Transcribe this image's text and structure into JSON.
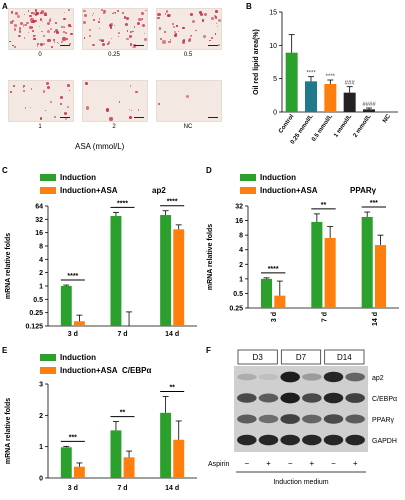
{
  "panel_labels": {
    "a": "A",
    "b": "B",
    "c": "C",
    "d": "D",
    "e": "E",
    "f": "F"
  },
  "panel_a": {
    "labels": [
      "0",
      "0.25",
      "0.5",
      "1",
      "2",
      "NC"
    ],
    "densities": [
      1.0,
      0.6,
      0.5,
      0.25,
      0.12,
      0.02
    ],
    "xlabel": "ASA (mmol/L)",
    "stain_color": "#c8324a",
    "background_color": "#f3e8e2"
  },
  "chart_data": [
    {
      "type": "bar",
      "panel": "B",
      "ylabel": "Oil red lipid area(%)",
      "categories": [
        "Control",
        "0.25 mmol/L",
        "0.5 mmol/L",
        "1 mmol/L",
        "2 mmol/L",
        "NC"
      ],
      "values": [
        8.9,
        4.6,
        4.2,
        2.9,
        0.4,
        0.0
      ],
      "errors": [
        2.7,
        0.7,
        0.6,
        0.9,
        0.2,
        0.0
      ],
      "significance": [
        "",
        "****",
        "****",
        "###",
        "####",
        ""
      ],
      "colors": [
        "#2ca02c",
        "#1f7a8c",
        "#ff7f0e",
        "#222222",
        "#222222",
        "#222222"
      ],
      "ylim": [
        0,
        15
      ],
      "yticks": [
        "0",
        "5",
        "10",
        "15"
      ]
    },
    {
      "type": "bar",
      "panel": "C",
      "title": "ap2",
      "ylabel": "mRNA relative folds",
      "scale": "log2",
      "categories": [
        "3 d",
        "7 d",
        "14 d"
      ],
      "series": [
        {
          "name": "Induction",
          "values": [
            1.0,
            38,
            40
          ],
          "errors": [
            0.05,
            8,
            10
          ]
        },
        {
          "name": "Induction+ASA",
          "values": [
            0.16,
            0.11,
            19
          ],
          "errors": [
            0.06,
            0.15,
            5
          ]
        }
      ],
      "significance": [
        "****",
        "****",
        "****"
      ],
      "ylim": [
        0.125,
        64
      ],
      "yticks": [
        "0.125",
        "0.25",
        "0.5",
        "1",
        "2",
        "4",
        "8",
        "16",
        "32",
        "64"
      ],
      "colors": [
        "#2ca02c",
        "#ff7f0e"
      ]
    },
    {
      "type": "bar",
      "panel": "D",
      "title": "PPARγ",
      "ylabel": "mRNA relative folds",
      "scale": "log2",
      "categories": [
        "3 d",
        "7 d",
        "14 d"
      ],
      "series": [
        {
          "name": "Induction",
          "values": [
            1.0,
            15,
            19
          ],
          "errors": [
            0.05,
            7,
            5
          ]
        },
        {
          "name": "Induction+ASA",
          "values": [
            0.45,
            7,
            5
          ],
          "errors": [
            0.45,
            5,
            3
          ]
        }
      ],
      "significance": [
        "****",
        "**",
        "***"
      ],
      "ylim": [
        0.25,
        32
      ],
      "yticks": [
        "0.25",
        "0.5",
        "1",
        "2",
        "4",
        "8",
        "16",
        "32"
      ],
      "colors": [
        "#2ca02c",
        "#ff7f0e"
      ]
    },
    {
      "type": "bar",
      "panel": "E",
      "title": "C/EBPα",
      "ylabel": "mRNA relative folds",
      "categories": [
        "3 d",
        "7 d",
        "14 d"
      ],
      "series": [
        {
          "name": "Induction",
          "values": [
            0.98,
            1.52,
            2.08
          ],
          "errors": [
            0.03,
            0.28,
            0.52
          ]
        },
        {
          "name": "Induction+ASA",
          "values": [
            0.36,
            0.66,
            1.22
          ],
          "errors": [
            0.12,
            0.2,
            0.6
          ]
        }
      ],
      "significance": [
        "***",
        "**",
        "**"
      ],
      "ylim": [
        0,
        3
      ],
      "yticks": [
        "0",
        "1",
        "2",
        "3"
      ],
      "colors": [
        "#2ca02c",
        "#ff7f0e"
      ]
    }
  ],
  "panel_f": {
    "time_labels": [
      "D3",
      "D7",
      "D14"
    ],
    "rows": [
      {
        "label": "ap2",
        "intensities": [
          0.15,
          0.05,
          0.95,
          0.25,
          0.9,
          0.55
        ]
      },
      {
        "label": "C/EBPα",
        "intensities": [
          0.7,
          0.6,
          0.95,
          0.7,
          0.9,
          0.75
        ]
      },
      {
        "label": "PPARγ",
        "intensities": [
          0.6,
          0.5,
          0.75,
          0.55,
          0.7,
          0.6
        ]
      },
      {
        "label": "GAPDH",
        "intensities": [
          0.9,
          0.9,
          0.9,
          0.9,
          0.9,
          0.9
        ]
      }
    ],
    "aspirin_label": "Aspirin",
    "signs": [
      "−",
      "+",
      "−",
      "+",
      "−",
      "+"
    ],
    "footer": "Induction medium"
  }
}
